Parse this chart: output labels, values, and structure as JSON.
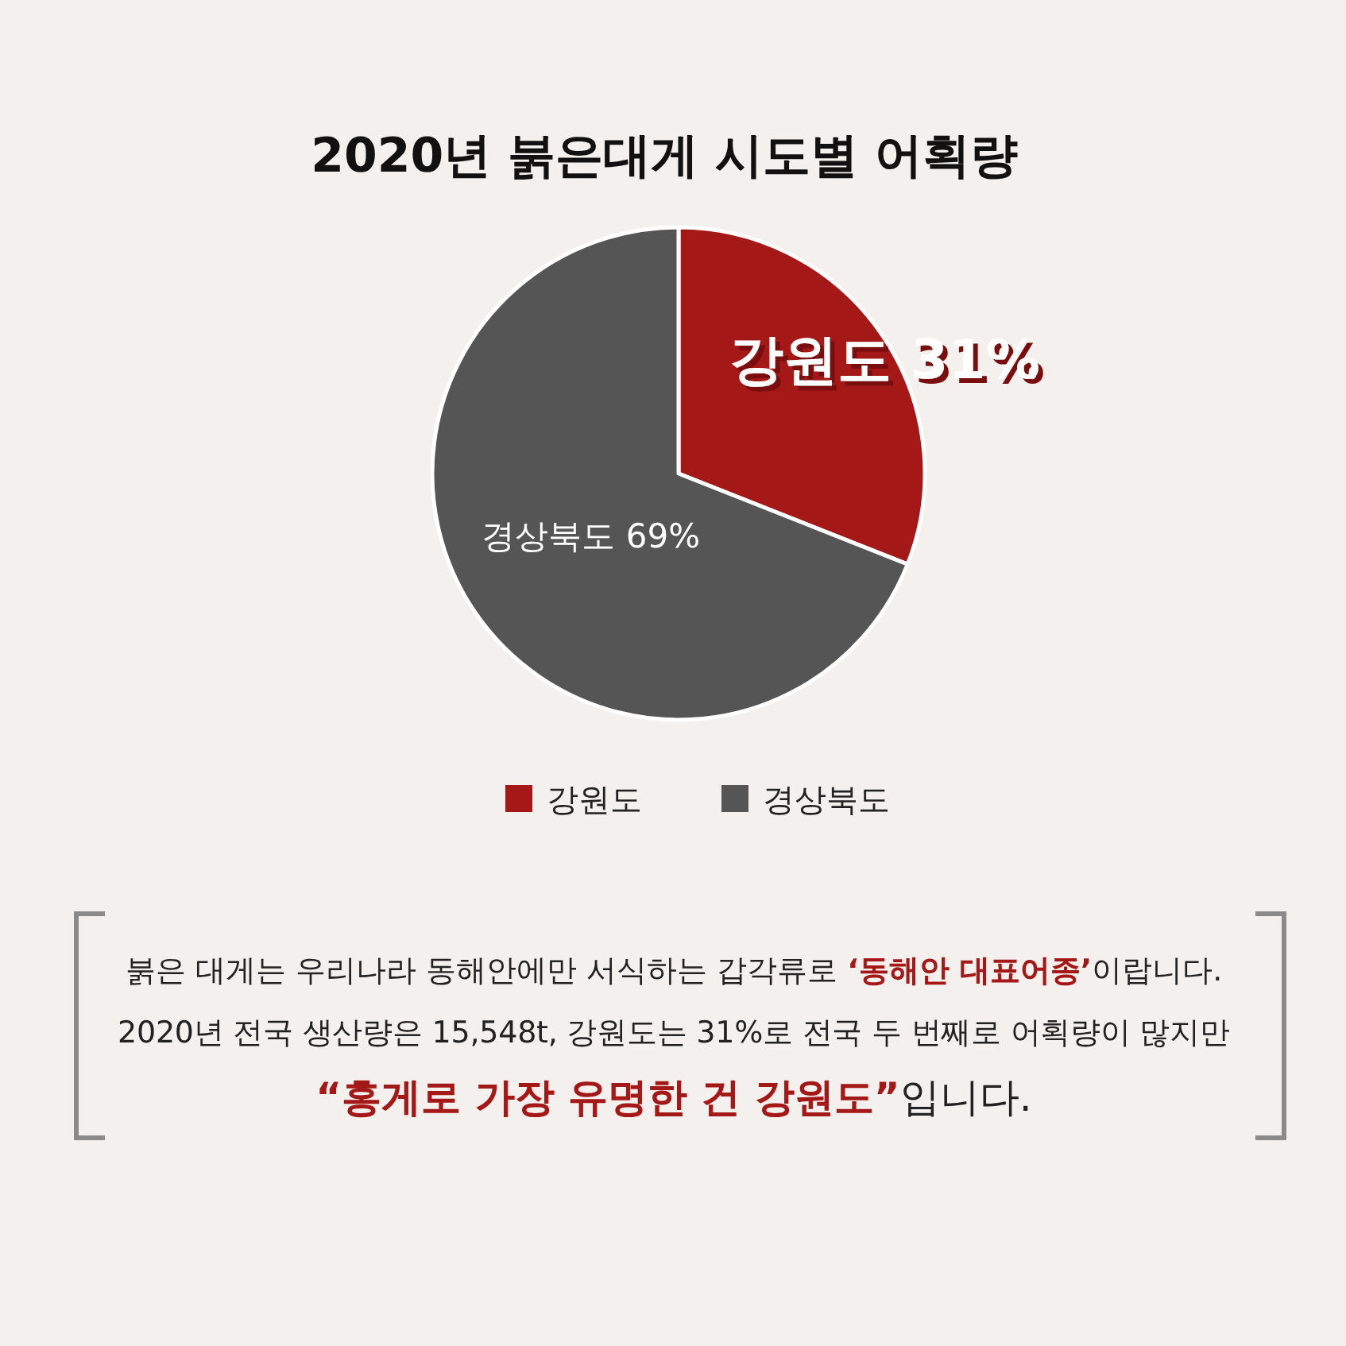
{
  "chart_data": {
    "type": "pie",
    "title": "2020년 붉은대게 시도별 어획량",
    "categories": [
      "강원도",
      "경상북도"
    ],
    "values": [
      31,
      69
    ],
    "colors": [
      "#a51818",
      "#555555"
    ],
    "value_labels": [
      "강원도 31%",
      "경상북도 69%"
    ],
    "legend": "bottom",
    "annotations": [
      "붉은 대게는 우리나라 동해안에만 서식하는 갑각류로 ‘동해안 대표어종’이랍니다.",
      "2020년 전국 생산량은 15,548t, 강원도는 31%로 전국 두 번째로 어획량이 많지만",
      "“홍게로 가장 유명한 건 강원도”입니다."
    ]
  }
}
